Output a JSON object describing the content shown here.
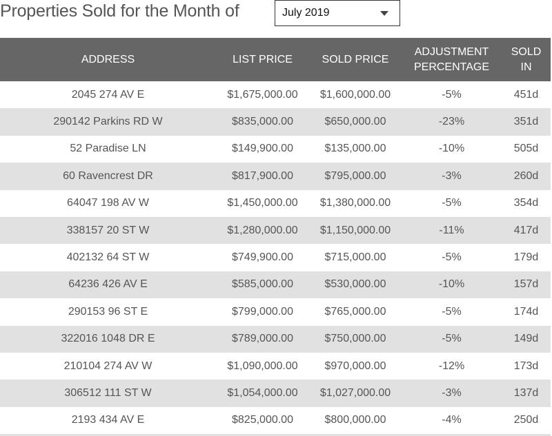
{
  "header": {
    "title": "Properties Sold for the Month of",
    "month_select": {
      "value": "July 2019",
      "icon": "caret-down-icon"
    }
  },
  "table": {
    "columns": [
      "ADDRESS",
      "LIST PRICE",
      "SOLD PRICE",
      "ADJUSTMENT PERCENTAGE",
      "SOLD IN"
    ],
    "rows": [
      [
        "2045 274 AV E",
        "$1,675,000.00",
        "$1,600,000.00",
        "-5%",
        "451d"
      ],
      [
        "290142 Parkins RD W",
        "$835,000.00",
        "$650,000.00",
        "-23%",
        "351d"
      ],
      [
        "52 Paradise LN",
        "$149,900.00",
        "$135,000.00",
        "-10%",
        "505d"
      ],
      [
        "60 Ravencrest DR",
        "$817,900.00",
        "$795,000.00",
        "-3%",
        "260d"
      ],
      [
        "64047 198 AV W",
        "$1,450,000.00",
        "$1,380,000.00",
        "-5%",
        "354d"
      ],
      [
        "338157 20 ST W",
        "$1,280,000.00",
        "$1,150,000.00",
        "-11%",
        "417d"
      ],
      [
        "402132 64 ST W",
        "$749,900.00",
        "$715,000.00",
        "-5%",
        "179d"
      ],
      [
        "64236 426 AV E",
        "$585,000.00",
        "$530,000.00",
        "-10%",
        "157d"
      ],
      [
        "290153 96 ST E",
        "$799,000.00",
        "$765,000.00",
        "-5%",
        "174d"
      ],
      [
        "322016 1048 DR E",
        "$789,000.00",
        "$750,000.00",
        "-5%",
        "149d"
      ],
      [
        "210104 274 AV W",
        "$1,090,000.00",
        "$970,000.00",
        "-12%",
        "173d"
      ],
      [
        "306512 111 ST W",
        "$1,054,000.00",
        "$1,027,000.00",
        "-3%",
        "137d"
      ],
      [
        "2193 434 AV E",
        "$825,000.00",
        "$800,000.00",
        "-4%",
        "250d"
      ]
    ]
  }
}
